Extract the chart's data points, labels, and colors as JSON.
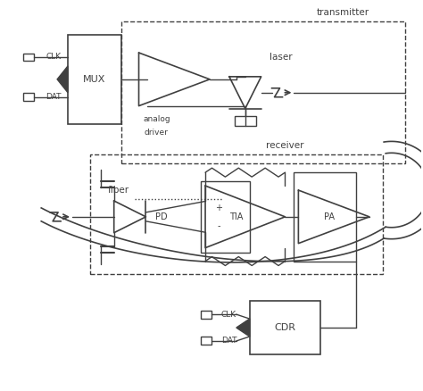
{
  "bg_color": "#ffffff",
  "line_color": "#404040",
  "figsize": [
    4.74,
    4.38
  ],
  "dpi": 100,
  "xlim": [
    0,
    47.4
  ],
  "ylim": [
    0,
    43.8
  ]
}
